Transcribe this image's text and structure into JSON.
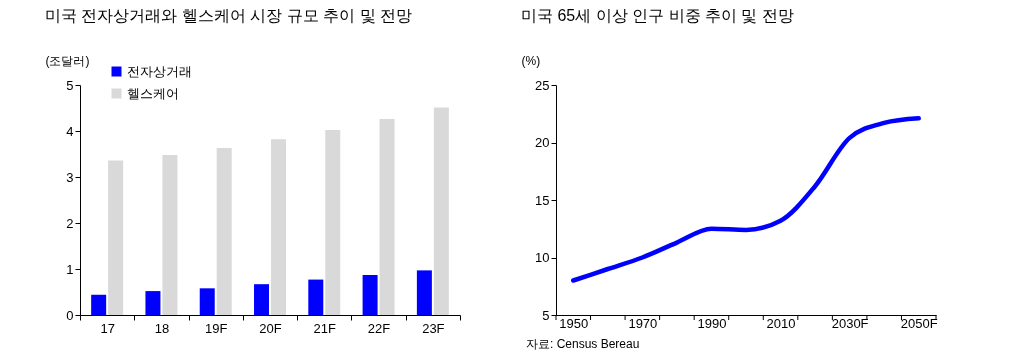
{
  "chart_data": [
    {
      "type": "bar",
      "title": "미국 전자상거래와 헬스케어 시장 규모 추이 및 전망",
      "ylabel": "(조달러)",
      "categories": [
        "17",
        "18",
        "19F",
        "20F",
        "21F",
        "22F",
        "23F"
      ],
      "series": [
        {
          "name": "전자상거래",
          "color": "#0000ff",
          "values": [
            0.44,
            0.52,
            0.58,
            0.67,
            0.77,
            0.87,
            0.97
          ]
        },
        {
          "name": "헬스케어",
          "color": "#d9d9d9",
          "values": [
            3.36,
            3.48,
            3.63,
            3.82,
            4.02,
            4.26,
            4.51
          ]
        }
      ],
      "ylim": [
        0,
        5
      ],
      "yticks": [
        0,
        1,
        2,
        3,
        4,
        5
      ],
      "grid": false,
      "legend": "top left"
    },
    {
      "type": "line",
      "title": "미국 65세 이상 인구 비중 추이 및 전망",
      "ylabel": "(%)",
      "categories": [
        "1950",
        null,
        "1970",
        null,
        "1990",
        null,
        "2010",
        null,
        "2030F",
        null,
        "2050F"
      ],
      "series": [
        {
          "color": "#0000ff",
          "values": [
            8.0,
            9.0,
            10.0,
            11.3,
            12.5,
            12.4,
            13.2,
            16.2,
            20.4,
            21.7,
            22.1
          ]
        }
      ],
      "ylim": [
        5,
        25
      ],
      "yticks": [
        5,
        10,
        15,
        20,
        25
      ],
      "grid": false,
      "marker": "none",
      "line_style": "solid",
      "annotations": [
        "자료: Census Bereau"
      ]
    }
  ]
}
